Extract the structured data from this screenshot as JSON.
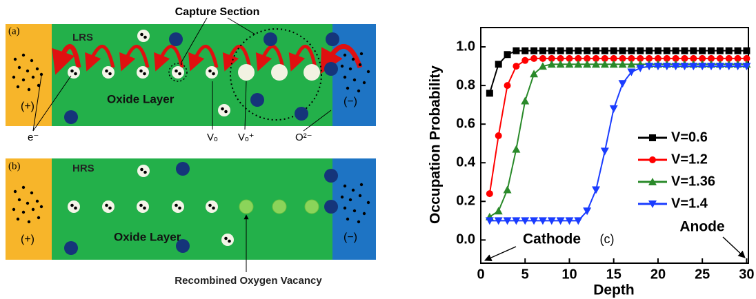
{
  "diagram_a": {
    "panel": "(a)",
    "state": "LRS",
    "capture_label": "Capture Section",
    "layer": "Oxide Layer",
    "left": "(+)",
    "right": "(−)",
    "electron": "e⁻",
    "vacancy": "Vₒ",
    "charged_vacancy": "Vₒ⁺",
    "oxygen_ion": "O²⁻"
  },
  "diagram_b": {
    "panel": "(b)",
    "state": "HRS",
    "layer": "Oxide Layer",
    "left": "(+)",
    "right": "(−)",
    "recombined_label": "Recombined Oxygen Vacancy"
  },
  "chart_data": {
    "type": "line",
    "x_label": "Depth",
    "y_label": "Occupation Probability",
    "annotations": [
      "Cathode",
      "(c)",
      "Anode"
    ],
    "x": [
      1,
      2,
      3,
      4,
      5,
      6,
      7,
      8,
      9,
      10,
      11,
      12,
      13,
      14,
      15,
      16,
      17,
      18,
      19,
      20,
      21,
      22,
      23,
      24,
      25,
      26,
      27,
      28,
      29,
      30
    ],
    "series": [
      {
        "name": "V=0.6",
        "color": "#000000",
        "marker": "square",
        "values": [
          0.76,
          0.91,
          0.96,
          0.98,
          0.98,
          0.98,
          0.98,
          0.98,
          0.98,
          0.98,
          0.98,
          0.98,
          0.98,
          0.98,
          0.98,
          0.98,
          0.98,
          0.98,
          0.98,
          0.98,
          0.98,
          0.98,
          0.98,
          0.98,
          0.98,
          0.98,
          0.98,
          0.98,
          0.98,
          0.98
        ]
      },
      {
        "name": "V=1.2",
        "color": "#ff0000",
        "marker": "circle",
        "values": [
          0.24,
          0.54,
          0.8,
          0.9,
          0.93,
          0.94,
          0.94,
          0.94,
          0.94,
          0.94,
          0.94,
          0.94,
          0.94,
          0.94,
          0.94,
          0.94,
          0.94,
          0.94,
          0.94,
          0.94,
          0.94,
          0.94,
          0.94,
          0.94,
          0.94,
          0.94,
          0.94,
          0.94,
          0.94,
          0.94
        ]
      },
      {
        "name": "V=1.36",
        "color": "#2a8a2a",
        "marker": "triangle-up",
        "values": [
          0.12,
          0.15,
          0.26,
          0.47,
          0.72,
          0.86,
          0.9,
          0.91,
          0.91,
          0.91,
          0.91,
          0.91,
          0.91,
          0.91,
          0.91,
          0.91,
          0.91,
          0.91,
          0.91,
          0.91,
          0.91,
          0.91,
          0.91,
          0.91,
          0.91,
          0.91,
          0.91,
          0.91,
          0.91,
          0.91
        ]
      },
      {
        "name": "V=1.4",
        "color": "#1a3cff",
        "marker": "triangle-down",
        "values": [
          0.1,
          0.1,
          0.1,
          0.1,
          0.1,
          0.1,
          0.1,
          0.1,
          0.1,
          0.1,
          0.1,
          0.15,
          0.26,
          0.46,
          0.68,
          0.81,
          0.87,
          0.89,
          0.9,
          0.9,
          0.9,
          0.9,
          0.9,
          0.9,
          0.9,
          0.9,
          0.9,
          0.9,
          0.9,
          0.9
        ]
      }
    ],
    "xlim": [
      0,
      30.2
    ],
    "ylim": [
      -0.12,
      1.1
    ],
    "xticks": [
      0,
      5,
      10,
      15,
      20,
      25,
      30
    ],
    "yticks": [
      {
        "value": 0,
        "label": "0.0"
      },
      0.2,
      0.4,
      0.6,
      0.8,
      {
        "value": 1,
        "label": "1.0"
      }
    ],
    "grid": false,
    "legend": "right"
  }
}
